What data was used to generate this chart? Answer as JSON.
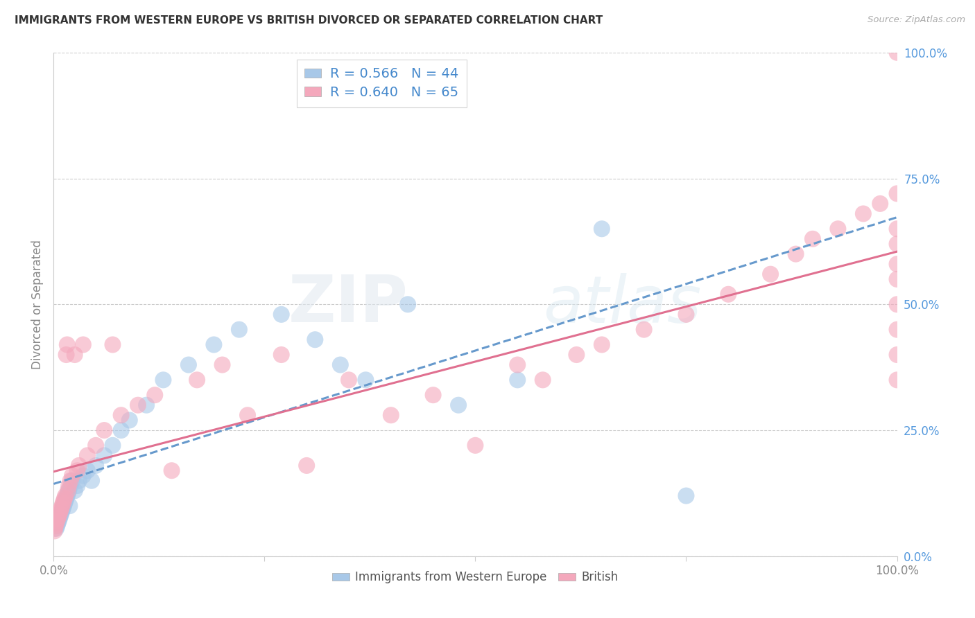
{
  "title": "IMMIGRANTS FROM WESTERN EUROPE VS BRITISH DIVORCED OR SEPARATED CORRELATION CHART",
  "source": "Source: ZipAtlas.com",
  "ylabel": "Divorced or Separated",
  "legend_blue_label": "Immigrants from Western Europe",
  "legend_pink_label": "British",
  "R_blue": "0.566",
  "N_blue": "44",
  "R_pink": "0.640",
  "N_pink": "65",
  "blue_color": "#a8c8e8",
  "pink_color": "#f4a8bc",
  "blue_line_color": "#6699cc",
  "pink_line_color": "#e07090",
  "watermark_zip": "ZIP",
  "watermark_atlas": "atlas",
  "bg_color": "#ffffff",
  "grid_color": "#cccccc",
  "right_ytick_labels": [
    "0.0%",
    "25.0%",
    "50.0%",
    "75.0%",
    "100.0%"
  ],
  "right_ytick_pcts": [
    0.0,
    25.0,
    50.0,
    75.0,
    100.0
  ],
  "axis_color": "#888888",
  "title_color": "#333333",
  "legend_val_color": "#4488cc",
  "blue_x": [
    0.3,
    0.4,
    0.5,
    0.6,
    0.7,
    0.8,
    0.9,
    1.0,
    1.1,
    1.2,
    1.3,
    1.4,
    1.5,
    1.6,
    1.7,
    1.8,
    1.9,
    2.0,
    2.2,
    2.5,
    2.8,
    3.0,
    3.5,
    4.0,
    4.5,
    5.0,
    6.0,
    7.0,
    8.0,
    9.0,
    11.0,
    13.0,
    16.0,
    19.0,
    22.0,
    27.0,
    31.0,
    34.0,
    37.0,
    42.0,
    48.0,
    55.0,
    65.0,
    75.0
  ],
  "blue_y": [
    5.5,
    6.0,
    6.5,
    7.0,
    7.5,
    8.0,
    8.5,
    9.0,
    9.5,
    10.0,
    10.5,
    11.0,
    11.5,
    12.0,
    12.5,
    13.0,
    10.0,
    14.0,
    15.0,
    13.0,
    14.0,
    15.0,
    16.0,
    17.0,
    15.0,
    18.0,
    20.0,
    22.0,
    25.0,
    27.0,
    30.0,
    35.0,
    38.0,
    42.0,
    45.0,
    48.0,
    43.0,
    38.0,
    35.0,
    50.0,
    30.0,
    35.0,
    65.0,
    12.0
  ],
  "pink_x": [
    0.1,
    0.15,
    0.2,
    0.3,
    0.4,
    0.5,
    0.6,
    0.7,
    0.8,
    0.9,
    1.0,
    1.1,
    1.2,
    1.3,
    1.4,
    1.5,
    1.6,
    1.7,
    1.8,
    2.0,
    2.2,
    2.5,
    2.8,
    3.0,
    3.5,
    4.0,
    5.0,
    6.0,
    7.0,
    8.0,
    10.0,
    12.0,
    14.0,
    17.0,
    20.0,
    23.0,
    27.0,
    30.0,
    35.0,
    40.0,
    45.0,
    50.0,
    55.0,
    58.0,
    62.0,
    65.0,
    70.0,
    75.0,
    80.0,
    85.0,
    88.0,
    90.0,
    93.0,
    96.0,
    98.0,
    100.0,
    100.0,
    100.0,
    100.0,
    100.0,
    100.0,
    100.0,
    100.0,
    100.0,
    100.0
  ],
  "pink_y": [
    5.0,
    5.5,
    6.0,
    6.5,
    7.0,
    7.5,
    8.0,
    8.5,
    9.0,
    9.5,
    10.0,
    10.5,
    11.0,
    11.5,
    12.0,
    40.0,
    42.0,
    13.0,
    14.0,
    15.0,
    16.0,
    40.0,
    17.0,
    18.0,
    42.0,
    20.0,
    22.0,
    25.0,
    42.0,
    28.0,
    30.0,
    32.0,
    17.0,
    35.0,
    38.0,
    28.0,
    40.0,
    18.0,
    35.0,
    28.0,
    32.0,
    22.0,
    38.0,
    35.0,
    40.0,
    42.0,
    45.0,
    48.0,
    52.0,
    56.0,
    60.0,
    63.0,
    65.0,
    68.0,
    70.0,
    100.0,
    62.0,
    72.0,
    65.0,
    58.0,
    55.0,
    50.0,
    45.0,
    40.0,
    35.0
  ],
  "xlim_pct": [
    0.0,
    100.0
  ],
  "ylim_pct": [
    0.0,
    100.0
  ],
  "x_plot_min": 0.0,
  "x_plot_max": 100.0
}
